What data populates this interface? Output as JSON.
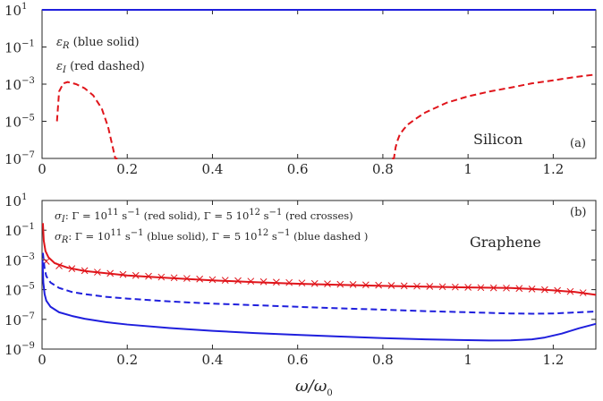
{
  "chart_data": [
    {
      "type": "line",
      "panel": "(a)",
      "material": "Silicon",
      "xlim": [
        0,
        1.3
      ],
      "ylim_log10": [
        -7,
        1
      ],
      "x_ticks": [
        "0",
        "0.2",
        "0.4",
        "0.6",
        "0.8",
        "1",
        "1.2"
      ],
      "y_ticks": [
        {
          "base": "10",
          "exp": "1"
        },
        {
          "base": "10",
          "exp": "-1"
        },
        {
          "base": "10",
          "exp": "-3"
        },
        {
          "base": "10",
          "exp": "-5"
        },
        {
          "base": "10",
          "exp": "-7"
        }
      ],
      "legend": [
        "εR (blue solid)",
        "εI (red dashed)"
      ],
      "series": [
        {
          "color": "#1f1fdd",
          "style": "solid",
          "x": [
            0,
            0.2,
            0.4,
            0.6,
            0.8,
            1.0,
            1.2,
            1.3
          ],
          "y": [
            11.7,
            11.8,
            12.0,
            12.2,
            12.6,
            13.0,
            13.6,
            14.0
          ]
        },
        {
          "color": "#e0151b",
          "style": "dashed",
          "x": [
            0.035,
            0.04,
            0.05,
            0.06,
            0.07,
            0.08,
            0.1,
            0.12,
            0.14,
            0.155,
            0.165,
            0.172,
            0.177
          ],
          "y": [
            1e-05,
            0.0004,
            0.0011,
            0.0013,
            0.00115,
            0.001,
            0.0006,
            0.00025,
            5e-05,
            5e-06,
            5e-07,
            5e-08,
            1e-08
          ]
        },
        {
          "color": "#e0151b",
          "style": "dashed",
          "x": [
            0.822,
            0.826,
            0.83,
            0.835,
            0.84,
            0.85,
            0.86,
            0.88,
            0.9,
            0.95,
            1.0,
            1.05,
            1.1,
            1.15,
            1.2,
            1.25,
            1.3
          ],
          "y": [
            1e-08,
            1e-07,
            4e-07,
            1e-06,
            2e-06,
            4e-06,
            7e-06,
            1.5e-05,
            3e-05,
            0.0001,
            0.00022,
            0.0004,
            0.00065,
            0.0011,
            0.0016,
            0.0024,
            0.0033
          ]
        }
      ]
    },
    {
      "type": "line",
      "panel": "(b)",
      "material": "Graphene",
      "xlim": [
        0,
        1.3
      ],
      "ylim_log10": [
        -9,
        1
      ],
      "x_ticks": [
        "0",
        "0.2",
        "0.4",
        "0.6",
        "0.8",
        "1",
        "1.2"
      ],
      "y_ticks": [
        {
          "base": "10",
          "exp": "1"
        },
        {
          "base": "10",
          "exp": "-1"
        },
        {
          "base": "10",
          "exp": "-3"
        },
        {
          "base": "10",
          "exp": "-5"
        },
        {
          "base": "10",
          "exp": "-7"
        },
        {
          "base": "10",
          "exp": "-9"
        }
      ],
      "xlabel": "ω/ω0",
      "legend": [
        "σI: Γ = 10^11 s^-1 (red solid), Γ = 5 10^12 s^-1 (red crosses)",
        "σR: Γ = 10^11 s^-1 (blue solid), Γ = 5 10^12 s^-1 (blue dashed )"
      ],
      "series": [
        {
          "color": "#e0151b",
          "style": "solid",
          "x": [
            0.002,
            0.004,
            0.008,
            0.015,
            0.03,
            0.06,
            0.1,
            0.2,
            0.3,
            0.4,
            0.5,
            0.6,
            0.7,
            0.8,
            0.9,
            1.0,
            1.1,
            1.15,
            1.2,
            1.25,
            1.3
          ],
          "y": [
            0.3,
            0.02,
            0.004,
            0.0015,
            0.0006,
            0.0003,
            0.00018,
            9e-05,
            6e-05,
            4.2e-05,
            3.2e-05,
            2.5e-05,
            2.1e-05,
            1.8e-05,
            1.6e-05,
            1.4e-05,
            1.3e-05,
            1.1e-05,
            9e-06,
            7e-06,
            4.5e-06
          ]
        },
        {
          "color": "#e0151b",
          "style": "crosses",
          "x": [
            0.01,
            0.04,
            0.07,
            0.1,
            0.13,
            0.16,
            0.19,
            0.22,
            0.25,
            0.28,
            0.31,
            0.34,
            0.37,
            0.4,
            0.43,
            0.46,
            0.49,
            0.52,
            0.55,
            0.58,
            0.61,
            0.64,
            0.67,
            0.7,
            0.73,
            0.76,
            0.79,
            0.82,
            0.85,
            0.88,
            0.91,
            0.94,
            0.97,
            1.0,
            1.03,
            1.06,
            1.09,
            1.12,
            1.15,
            1.18,
            1.21,
            1.24,
            1.27
          ],
          "y": [
            0.0008,
            0.0004,
            0.00026,
            0.00019,
            0.00015,
            0.000125,
            0.000105,
            9e-05,
            8e-05,
            7e-05,
            6.3e-05,
            5.7e-05,
            5.2e-05,
            4.7e-05,
            4.3e-05,
            4e-05,
            3.7e-05,
            3.4e-05,
            3.2e-05,
            3e-05,
            2.8e-05,
            2.6e-05,
            2.45e-05,
            2.3e-05,
            2.2e-05,
            2.1e-05,
            2e-05,
            1.9e-05,
            1.8e-05,
            1.72e-05,
            1.65e-05,
            1.58e-05,
            1.5e-05,
            1.43e-05,
            1.37e-05,
            1.32e-05,
            1.28e-05,
            1.2e-05,
            1.1e-05,
            1e-05,
            8.8e-06,
            7.5e-06,
            6.2e-06
          ]
        },
        {
          "color": "#1f1fdd",
          "style": "solid",
          "x": [
            0.001,
            0.003,
            0.006,
            0.01,
            0.02,
            0.04,
            0.07,
            0.1,
            0.15,
            0.2,
            0.3,
            0.4,
            0.5,
            0.6,
            0.7,
            0.8,
            0.9,
            1.0,
            1.05,
            1.1,
            1.15,
            1.18,
            1.22,
            1.26,
            1.3
          ],
          "y": [
            0.001,
            3e-05,
            5e-06,
            1.8e-06,
            7e-07,
            3e-07,
            1.7e-07,
            1.1e-07,
            6.5e-08,
            4.5e-08,
            2.6e-08,
            1.7e-08,
            1.2e-08,
            9e-09,
            7e-09,
            5.5e-09,
            4.5e-09,
            4e-09,
            3.8e-09,
            3.9e-09,
            4.5e-09,
            6e-09,
            1.1e-08,
            2.5e-08,
            5e-08
          ]
        },
        {
          "color": "#1f1fdd",
          "style": "dashed",
          "x": [
            0.002,
            0.006,
            0.01,
            0.02,
            0.04,
            0.07,
            0.1,
            0.15,
            0.2,
            0.3,
            0.4,
            0.5,
            0.6,
            0.7,
            0.8,
            0.9,
            1.0,
            1.1,
            1.15,
            1.2,
            1.25,
            1.3
          ],
          "y": [
            0.003,
            0.00025,
            8e-05,
            3e-05,
            1.3e-05,
            7e-06,
            5e-06,
            3.3e-06,
            2.5e-06,
            1.6e-06,
            1.15e-06,
            9e-07,
            7e-07,
            5.5e-07,
            4.5e-07,
            3.6e-07,
            3e-07,
            2.5e-07,
            2.4e-07,
            2.5e-07,
            2.9e-07,
            3.4e-07
          ]
        }
      ]
    }
  ]
}
